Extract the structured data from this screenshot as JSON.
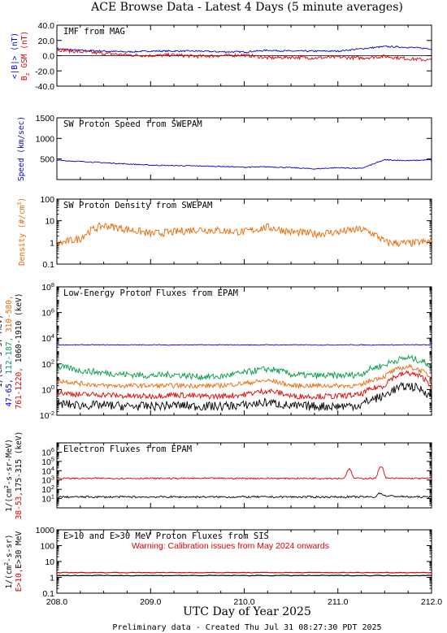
{
  "page_title": "ACE Browse Data - Latest 4 Days (5 minute averages)",
  "xlabel": "UTC Day of Year 2025",
  "footer": "Preliminary data - Created Thu Jul 31 08:27:30 PDT 2025",
  "warning": "Warning: Calibration issues from May 2024 onwards",
  "colors": {
    "blue": "#0000cc",
    "red": "#dd0000",
    "green": "#00994d",
    "orange": "#ee6600",
    "black": "#000000"
  },
  "chart_data": [
    {
      "type": "line",
      "title": "IMF from MAG",
      "ylabel_parts": [
        "<|B|> (nT)",
        "B_z GSM (nT)"
      ],
      "xlim": [
        208.0,
        212.0
      ],
      "ylim": [
        -40,
        40
      ],
      "yscale": "linear",
      "yticks": [
        "-40.0",
        "-20.0",
        "0.0",
        "20.0",
        "40.0"
      ],
      "series": [
        {
          "name": "<|B|>",
          "color": "blue",
          "x": [
            208.0,
            208.25,
            208.5,
            208.75,
            209.0,
            209.25,
            209.5,
            209.75,
            210.0,
            210.25,
            210.5,
            210.75,
            211.0,
            211.25,
            211.5,
            211.75,
            212.0
          ],
          "values": [
            9,
            7,
            6,
            5,
            6,
            6,
            6,
            5,
            5,
            7,
            6,
            6,
            6,
            9,
            12,
            11,
            9
          ]
        },
        {
          "name": "B_z GSM",
          "color": "red",
          "x": [
            208.0,
            208.25,
            208.5,
            208.75,
            209.0,
            209.25,
            209.5,
            209.75,
            210.0,
            210.25,
            210.5,
            210.75,
            211.0,
            211.25,
            211.5,
            211.75,
            212.0
          ],
          "values": [
            8,
            5,
            3,
            1,
            0,
            1,
            -1,
            0,
            1,
            -3,
            -2,
            -3,
            -2,
            -3,
            -1,
            -4,
            -6
          ]
        }
      ]
    },
    {
      "type": "line",
      "title": "SW Proton Speed from SWEPAM",
      "ylabel_parts": [
        "Speed (km/sec)"
      ],
      "xlim": [
        208.0,
        212.0
      ],
      "ylim": [
        0,
        1500
      ],
      "yscale": "linear",
      "yticks": [
        "500",
        "1000",
        "1500"
      ],
      "series": [
        {
          "name": "Speed",
          "color": "blue",
          "x": [
            208.0,
            208.25,
            208.5,
            208.75,
            209.0,
            209.25,
            209.5,
            209.75,
            210.0,
            210.25,
            210.5,
            210.75,
            211.0,
            211.25,
            211.5,
            211.75,
            212.0
          ],
          "values": [
            470,
            440,
            410,
            380,
            350,
            340,
            330,
            320,
            300,
            310,
            290,
            260,
            290,
            270,
            480,
            460,
            480
          ]
        }
      ]
    },
    {
      "type": "line",
      "title": "SW Proton Density from SWEPAM",
      "ylabel_parts": [
        "Density (#/cm^3)"
      ],
      "xlim": [
        208.0,
        212.0
      ],
      "ylim": [
        0.1,
        100
      ],
      "yscale": "log",
      "yticks": [
        "0.1",
        "1",
        "10",
        "100"
      ],
      "series": [
        {
          "name": "Density",
          "color": "orange",
          "x": [
            208.0,
            208.25,
            208.5,
            208.75,
            209.0,
            209.25,
            209.5,
            209.75,
            210.0,
            210.25,
            210.5,
            210.75,
            211.0,
            211.25,
            211.5,
            211.75,
            212.0
          ],
          "values": [
            0.8,
            1.5,
            6,
            4,
            2.5,
            3,
            4,
            3.5,
            3,
            5,
            3,
            2.5,
            3,
            4,
            1,
            0.9,
            1.1
          ]
        }
      ]
    },
    {
      "type": "line",
      "title": "Low-Energy Proton Fluxes from EPAM",
      "ylabel_parts": [
        "1/(cm^2-s-sr-MeV)",
        "47-65,",
        "112-187,",
        "310-580,",
        "761-1220,",
        "1060-1910 (keV)"
      ],
      "xlim": [
        208.0,
        212.0
      ],
      "ylim": [
        0.01,
        100000000
      ],
      "yscale": "log",
      "yticks": [
        "10^-2",
        "10^0",
        "10^2",
        "10^4",
        "10^6",
        "10^8"
      ],
      "series": [
        {
          "name": "47-65",
          "color": "blue",
          "x": [
            208.0,
            208.25,
            208.5,
            208.75,
            209.0,
            209.25,
            209.5,
            209.75,
            210.0,
            210.25,
            210.5,
            210.75,
            211.0,
            211.25,
            211.5,
            211.75,
            212.0
          ],
          "values": [
            3000,
            3000,
            3000,
            3000,
            3000,
            3000,
            3000,
            3000,
            3000,
            3000,
            3000,
            3000,
            3000,
            3000,
            3000,
            3000,
            3000
          ]
        },
        {
          "name": "112-187",
          "color": "green",
          "x": [
            208.0,
            208.25,
            208.5,
            208.75,
            209.0,
            209.25,
            209.5,
            209.75,
            210.0,
            210.25,
            210.5,
            210.75,
            211.0,
            211.25,
            211.5,
            211.75,
            212.0
          ],
          "values": [
            60,
            30,
            20,
            15,
            12,
            15,
            10,
            10,
            20,
            40,
            15,
            12,
            12,
            15,
            80,
            300,
            60
          ]
        },
        {
          "name": "310-580",
          "color": "orange",
          "x": [
            208.0,
            208.25,
            208.5,
            208.75,
            209.0,
            209.25,
            209.5,
            209.75,
            210.0,
            210.25,
            210.5,
            210.75,
            211.0,
            211.25,
            211.5,
            211.75,
            212.0
          ],
          "values": [
            5,
            3,
            2,
            2,
            2,
            2,
            2,
            2,
            3,
            5,
            2,
            2,
            2,
            2,
            10,
            60,
            5
          ]
        },
        {
          "name": "761-1220",
          "color": "red",
          "x": [
            208.0,
            208.25,
            208.5,
            208.75,
            209.0,
            209.25,
            209.5,
            209.75,
            210.0,
            210.25,
            210.5,
            210.75,
            211.0,
            211.25,
            211.5,
            211.75,
            212.0
          ],
          "values": [
            0.6,
            0.4,
            0.4,
            0.3,
            0.3,
            0.4,
            0.3,
            0.3,
            0.4,
            0.8,
            0.3,
            0.3,
            0.3,
            0.4,
            2,
            20,
            1
          ]
        },
        {
          "name": "1060-1910",
          "color": "black",
          "x": [
            208.0,
            208.25,
            208.5,
            208.75,
            209.0,
            209.25,
            209.5,
            209.75,
            210.0,
            210.25,
            210.5,
            210.75,
            211.0,
            211.25,
            211.5,
            211.75,
            212.0
          ],
          "values": [
            0.08,
            0.06,
            0.06,
            0.05,
            0.05,
            0.06,
            0.05,
            0.05,
            0.06,
            0.1,
            0.05,
            0.05,
            0.05,
            0.06,
            0.3,
            2,
            0.2
          ]
        }
      ]
    },
    {
      "type": "line",
      "title": "Electron Fluxes from EPAM",
      "ylabel_parts": [
        "1/(cm^2-s-sr-MeV)",
        "38-53,",
        "175-315 (keV)"
      ],
      "xlim": [
        208.0,
        212.0
      ],
      "ylim": [
        1,
        10000000
      ],
      "yscale": "log",
      "yticks": [
        "10^1",
        "10^2",
        "10^3",
        "10^4",
        "10^5",
        "10^6"
      ],
      "series": [
        {
          "name": "38-53",
          "color": "red",
          "x": [
            208.0,
            208.5,
            209.0,
            209.5,
            210.0,
            210.5,
            211.0,
            211.08,
            211.12,
            211.16,
            211.3,
            211.42,
            211.46,
            211.5,
            211.75,
            212.0
          ],
          "values": [
            1500,
            1500,
            1500,
            1500,
            1500,
            1500,
            1500,
            1500,
            15000,
            1500,
            1500,
            1500,
            30000,
            1500,
            1500,
            1500
          ]
        },
        {
          "name": "175-315",
          "color": "black",
          "x": [
            208.0,
            208.5,
            209.0,
            209.5,
            210.0,
            210.5,
            211.0,
            211.4,
            211.45,
            211.5,
            211.75,
            212.0
          ],
          "values": [
            15,
            15,
            15,
            15,
            15,
            15,
            15,
            15,
            40,
            20,
            15,
            15
          ]
        }
      ]
    },
    {
      "type": "line",
      "title": "E>10 and E>30 MeV Proton Fluxes from SIS",
      "ylabel_parts": [
        "1/(cm^2-s-sr)",
        "E>10,",
        "E>30 MeV"
      ],
      "xlim": [
        208.0,
        212.0
      ],
      "ylim": [
        0.1,
        1000
      ],
      "yscale": "log",
      "yticks": [
        "0.1",
        "1",
        "10",
        "100",
        "1000"
      ],
      "series": [
        {
          "name": "E>10",
          "color": "red",
          "x": [
            208.0,
            209.0,
            210.0,
            211.0,
            212.0
          ],
          "values": [
            2.0,
            2.0,
            2.0,
            2.0,
            2.0
          ]
        },
        {
          "name": "E>30",
          "color": "black",
          "x": [
            208.0,
            209.0,
            210.0,
            211.0,
            212.0
          ],
          "values": [
            1.3,
            1.3,
            1.3,
            1.3,
            1.3
          ]
        }
      ]
    }
  ],
  "xticks": [
    "208.0",
    "209.0",
    "210.0",
    "211.0",
    "212.0"
  ]
}
